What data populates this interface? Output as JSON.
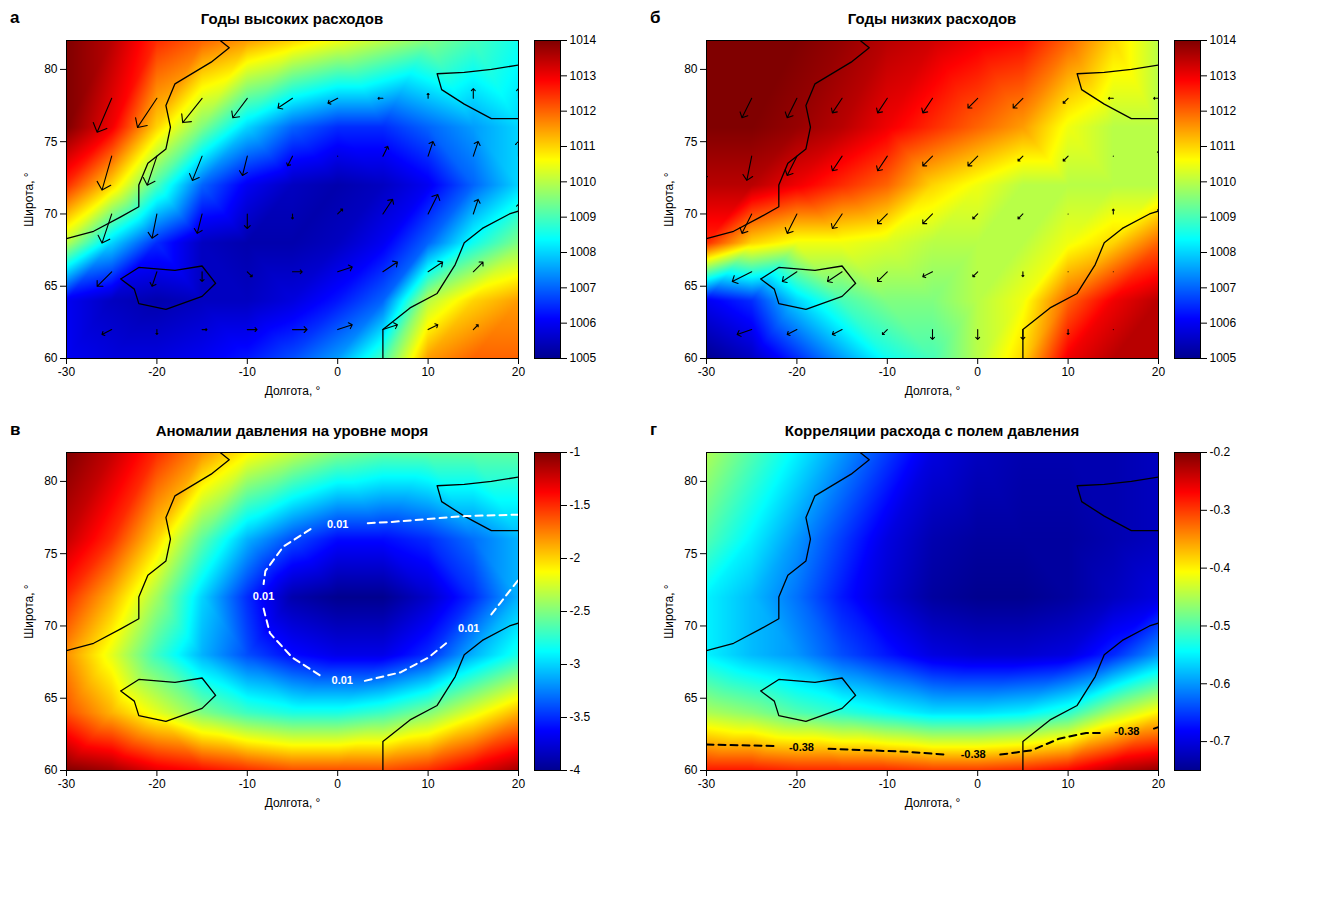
{
  "coastlines": [
    [
      [
        -30,
        68.3
      ],
      [
        -27,
        68.8
      ],
      [
        -24,
        69.8
      ],
      [
        -22,
        70.5
      ],
      [
        -22,
        72
      ],
      [
        -21,
        73.5
      ],
      [
        -19,
        74.5
      ],
      [
        -18.5,
        76
      ],
      [
        -19,
        77.5
      ],
      [
        -18,
        79
      ],
      [
        -14,
        80.5
      ],
      [
        -12,
        81.5
      ],
      [
        -13,
        82
      ]
    ],
    [
      [
        -24,
        65.5
      ],
      [
        -22,
        66.3
      ],
      [
        -18,
        66.1
      ],
      [
        -15,
        66.4
      ],
      [
        -13.5,
        65.2
      ],
      [
        -15,
        64.3
      ],
      [
        -19,
        63.4
      ],
      [
        -22,
        63.8
      ],
      [
        -22.5,
        64.8
      ],
      [
        -24,
        65.5
      ]
    ],
    [
      [
        5,
        60
      ],
      [
        5,
        62
      ],
      [
        8,
        63.5
      ],
      [
        11,
        64.5
      ],
      [
        13,
        66.5
      ],
      [
        14,
        68
      ],
      [
        16,
        69
      ],
      [
        19,
        70
      ],
      [
        20,
        70.2
      ]
    ],
    [
      [
        20,
        76.6
      ],
      [
        17,
        76.6
      ],
      [
        14,
        77.6
      ],
      [
        11.5,
        78.6
      ],
      [
        11,
        79.7
      ],
      [
        14,
        79.8
      ],
      [
        17,
        80
      ],
      [
        20,
        80.3
      ]
    ]
  ],
  "chart_data": [
    {
      "type": "heatmap",
      "letter": "а",
      "title": "Годы высоких расходов",
      "xlabel": "Долгота, °",
      "ylabel": "Широта, °",
      "xlim": [
        -30,
        20
      ],
      "xticks": [
        -30,
        -20,
        -10,
        0,
        10,
        20
      ],
      "ylim": [
        60,
        82
      ],
      "yticks": [
        60,
        65,
        70,
        75,
        80
      ],
      "grid_lon": [
        -30,
        -25,
        -20,
        -15,
        -10,
        -5,
        0,
        5,
        10,
        15,
        20
      ],
      "grid_lat": [
        60,
        64,
        68,
        72,
        76,
        82
      ],
      "values": [
        [
          1006,
          1005.8,
          1005.8,
          1006,
          1006.3,
          1006.8,
          1007.5,
          1009,
          1011.5,
          1012,
          1012
        ],
        [
          1006,
          1005.5,
          1005.3,
          1005.5,
          1005.5,
          1005.8,
          1006.3,
          1007,
          1010,
          1011,
          1011.5
        ],
        [
          1010,
          1008,
          1006.5,
          1005.5,
          1005.3,
          1005.3,
          1005.5,
          1006,
          1007,
          1008.5,
          1009.5
        ],
        [
          1012.5,
          1011,
          1009,
          1007,
          1006,
          1005.5,
          1005.3,
          1005.5,
          1006,
          1007,
          1008
        ],
        [
          1014,
          1013,
          1011,
          1009.5,
          1008,
          1007,
          1006.5,
          1006.5,
          1007,
          1007.5,
          1008
        ],
        [
          1014,
          1013.5,
          1012.5,
          1012,
          1011.5,
          1011,
          1010.5,
          1010,
          1009.5,
          1009,
          1008.5
        ]
      ],
      "colorbar": {
        "lim": [
          1005,
          1014
        ],
        "ticks": [
          1005,
          1006,
          1007,
          1008,
          1009,
          1010,
          1011,
          1012,
          1013,
          1014
        ]
      },
      "wind": {
        "lon": [
          -30,
          -25,
          -20,
          -15,
          -10,
          -5,
          0,
          5,
          10,
          15,
          20
        ],
        "lat": [
          62,
          66,
          70,
          74,
          78
        ],
        "u": [
          [
            -3,
            -2,
            0,
            1,
            2,
            3,
            3,
            3,
            2,
            1,
            1
          ],
          [
            -4,
            -3,
            -1,
            0,
            1,
            2,
            3,
            3,
            3,
            2,
            1
          ],
          [
            -3,
            -2,
            -1,
            -1,
            0,
            0,
            1,
            2,
            2,
            1,
            0
          ],
          [
            -2,
            -2,
            -2,
            -2,
            -1,
            -1,
            0,
            1,
            1,
            1,
            0
          ],
          [
            -2,
            -3,
            -4,
            -4,
            -3,
            -3,
            -2,
            -1,
            0,
            0,
            0
          ]
        ],
        "v": [
          [
            -1,
            -1,
            -1,
            0,
            0,
            0,
            1,
            1,
            1,
            1,
            0
          ],
          [
            -3,
            -3,
            -3,
            -2,
            -1,
            0,
            1,
            2,
            2,
            2,
            1
          ],
          [
            -7,
            -6,
            -5,
            -4,
            -3,
            -1,
            1,
            3,
            4,
            3,
            2
          ],
          [
            -8,
            -7,
            -6,
            -5,
            -4,
            -2,
            0,
            2,
            3,
            3,
            3
          ],
          [
            -7,
            -7,
            -6,
            -5,
            -4,
            -2,
            -1,
            0,
            1,
            2,
            2
          ]
        ]
      }
    },
    {
      "type": "heatmap",
      "letter": "б",
      "title": "Годы низких расходов",
      "xlabel": "Долгота, °",
      "ylabel": "Широта, °",
      "xlim": [
        -30,
        20
      ],
      "xticks": [
        -30,
        -20,
        -10,
        0,
        10,
        20
      ],
      "ylim": [
        60,
        82
      ],
      "yticks": [
        60,
        65,
        70,
        75,
        80
      ],
      "grid_lon": [
        -30,
        -25,
        -20,
        -15,
        -10,
        -5,
        0,
        5,
        10,
        15,
        20
      ],
      "grid_lat": [
        60,
        64,
        68,
        72,
        76,
        82
      ],
      "values": [
        [
          1005,
          1005.5,
          1006.5,
          1007.5,
          1008.5,
          1009,
          1010,
          1011,
          1013,
          1013.5,
          1013.5
        ],
        [
          1006,
          1006.5,
          1008,
          1009,
          1009.5,
          1009.5,
          1010,
          1010.5,
          1012,
          1013,
          1013.5
        ],
        [
          1012.5,
          1011,
          1010.5,
          1010.5,
          1010.3,
          1010,
          1010,
          1010,
          1010.5,
          1011,
          1012
        ],
        [
          1013.5,
          1013.5,
          1013,
          1012.5,
          1012,
          1011,
          1010.5,
          1010,
          1010,
          1010,
          1010
        ],
        [
          1014,
          1014,
          1013.8,
          1013.5,
          1013,
          1012.5,
          1012,
          1011.5,
          1010.5,
          1010,
          1010
        ],
        [
          1014,
          1014,
          1014,
          1013.8,
          1013.5,
          1013.3,
          1013,
          1012.8,
          1012,
          1011,
          1010
        ]
      ],
      "colorbar": {
        "lim": [
          1005,
          1014
        ],
        "ticks": [
          1005,
          1006,
          1007,
          1008,
          1009,
          1010,
          1011,
          1012,
          1013,
          1014
        ]
      },
      "wind": {
        "lon": [
          -30,
          -25,
          -20,
          -15,
          -10,
          -5,
          0,
          5,
          10,
          15,
          20
        ],
        "lat": [
          62,
          66,
          70,
          74,
          78
        ],
        "u": [
          [
            -4,
            -3,
            -2,
            -2,
            -1,
            0,
            0,
            0,
            0,
            0,
            0
          ],
          [
            -5,
            -4,
            -3,
            -3,
            -2,
            -2,
            -1,
            0,
            0,
            0,
            0
          ],
          [
            -2,
            -2,
            -2,
            -2,
            -2,
            -2,
            -1,
            -1,
            0,
            0,
            0
          ],
          [
            -1,
            -1,
            -2,
            -2,
            -2,
            -2,
            -2,
            -1,
            -1,
            0,
            0
          ],
          [
            -1,
            -2,
            -2,
            -2,
            -2,
            -2,
            -2,
            -2,
            -1,
            -1,
            -1
          ]
        ],
        "v": [
          [
            -1,
            -1,
            -1,
            -1,
            -1,
            -2,
            -2,
            -2,
            -1,
            0,
            0
          ],
          [
            -2,
            -2,
            -2,
            -2,
            -2,
            -1,
            -1,
            -1,
            0,
            0,
            0
          ],
          [
            -5,
            -4,
            -4,
            -3,
            -2,
            -2,
            -1,
            -1,
            0,
            1,
            1
          ],
          [
            -5,
            -5,
            -4,
            -3,
            -3,
            -2,
            -2,
            -1,
            -1,
            0,
            1
          ],
          [
            -4,
            -4,
            -4,
            -3,
            -3,
            -3,
            -2,
            -2,
            -1,
            0,
            0
          ]
        ]
      }
    },
    {
      "type": "heatmap",
      "letter": "в",
      "title": "Аномалии давления на уровне моря",
      "xlabel": "Долгота, °",
      "ylabel": "Широта, °",
      "xlim": [
        -30,
        20
      ],
      "xticks": [
        -30,
        -20,
        -10,
        0,
        10,
        20
      ],
      "ylim": [
        60,
        82
      ],
      "yticks": [
        60,
        65,
        70,
        75,
        80
      ],
      "grid_lon": [
        -30,
        -25,
        -20,
        -15,
        -10,
        -5,
        0,
        5,
        10,
        15,
        20
      ],
      "grid_lat": [
        60,
        64,
        68,
        72,
        76,
        82
      ],
      "values": [
        [
          -1,
          -1.1,
          -1.3,
          -1.4,
          -1.5,
          -1.6,
          -1.6,
          -1.6,
          -1.5,
          -1.3,
          -1.1
        ],
        [
          -1.6,
          -1.9,
          -2.2,
          -2.5,
          -2.7,
          -2.8,
          -2.8,
          -2.7,
          -2.5,
          -2.2,
          -1.9
        ],
        [
          -1.8,
          -2.2,
          -2.7,
          -3.1,
          -3.4,
          -3.6,
          -3.7,
          -3.7,
          -3.5,
          -3.1,
          -2.8
        ],
        [
          -1.5,
          -1.9,
          -2.4,
          -3,
          -3.5,
          -3.9,
          -4,
          -4,
          -3.8,
          -3.5,
          -3.1
        ],
        [
          -1.2,
          -1.5,
          -2,
          -2.6,
          -3.1,
          -3.4,
          -3.6,
          -3.6,
          -3.5,
          -3.3,
          -3.1
        ],
        [
          -1,
          -1.2,
          -1.5,
          -1.8,
          -2.1,
          -2.3,
          -2.5,
          -2.6,
          -2.6,
          -2.6,
          -2.6
        ]
      ],
      "colorbar": {
        "lim": [
          -4,
          -1
        ],
        "ticks": [
          -4,
          -3.5,
          -3,
          -2.5,
          -2,
          -1.5,
          -1
        ]
      },
      "contour": {
        "value": 0.01,
        "label": "0.01",
        "color": "#ffffff",
        "line_style": "dashed",
        "segments": [
          [
            [
              20,
              77.7
            ],
            [
              14,
              77.6
            ],
            [
              6,
              77.2
            ],
            [
              3,
              77.1
            ]
          ],
          [
            [
              -3,
              76.7
            ],
            [
              -6,
              75.5
            ],
            [
              -8,
              73.8
            ],
            [
              -8.2,
              72.9
            ]
          ],
          [
            [
              -8.2,
              71.2
            ],
            [
              -7.5,
              69.5
            ],
            [
              -5,
              67.8
            ],
            [
              -2,
              66.6
            ]
          ],
          [
            [
              3,
              66.2
            ],
            [
              7,
              66.8
            ],
            [
              10,
              67.8
            ],
            [
              12,
              68.8
            ]
          ],
          [
            [
              17,
              70.8
            ],
            [
              18,
              71.6
            ],
            [
              20,
              73.2
            ]
          ]
        ],
        "label_positions": [
          [
            0,
            77.0
          ],
          [
            -8.2,
            72.05
          ],
          [
            0.5,
            66.2
          ],
          [
            14.5,
            69.8
          ]
        ]
      }
    },
    {
      "type": "heatmap",
      "letter": "г",
      "title": "Корреляции расхода с полем давления",
      "xlabel": "Долгота, °",
      "ylabel": "Широта, °",
      "xlim": [
        -30,
        20
      ],
      "xticks": [
        -30,
        -20,
        -10,
        0,
        10,
        20
      ],
      "ylim": [
        60,
        82
      ],
      "yticks": [
        60,
        65,
        70,
        75,
        80
      ],
      "grid_lon": [
        -30,
        -25,
        -20,
        -15,
        -10,
        -5,
        0,
        5,
        10,
        15,
        20
      ],
      "grid_lat": [
        60,
        64,
        68,
        72,
        76,
        82
      ],
      "values": [
        [
          -0.28,
          -0.28,
          -0.29,
          -0.29,
          -0.29,
          -0.3,
          -0.3,
          -0.29,
          -0.27,
          -0.23,
          -0.21
        ],
        [
          -0.45,
          -0.47,
          -0.5,
          -0.52,
          -0.54,
          -0.56,
          -0.56,
          -0.55,
          -0.52,
          -0.45,
          -0.4
        ],
        [
          -0.55,
          -0.58,
          -0.6,
          -0.64,
          -0.67,
          -0.7,
          -0.71,
          -0.71,
          -0.7,
          -0.66,
          -0.6
        ],
        [
          -0.55,
          -0.58,
          -0.62,
          -0.67,
          -0.71,
          -0.74,
          -0.75,
          -0.75,
          -0.74,
          -0.72,
          -0.7
        ],
        [
          -0.5,
          -0.55,
          -0.6,
          -0.65,
          -0.7,
          -0.73,
          -0.74,
          -0.74,
          -0.74,
          -0.73,
          -0.72
        ],
        [
          -0.45,
          -0.5,
          -0.55,
          -0.6,
          -0.65,
          -0.7,
          -0.72,
          -0.73,
          -0.73,
          -0.73,
          -0.72
        ]
      ],
      "colorbar": {
        "lim": [
          -0.75,
          -0.2
        ],
        "ticks": [
          -0.7,
          -0.6,
          -0.5,
          -0.4,
          -0.3,
          -0.2
        ]
      },
      "contour": {
        "value": -0.38,
        "label": "-0.38",
        "color": "#000000",
        "line_style": "dashed",
        "segments": [
          [
            [
              -30,
              61.8
            ],
            [
              -22.5,
              61.7
            ]
          ],
          [
            [
              -16.5,
              61.5
            ],
            [
              -8,
              61.3
            ],
            [
              -3.5,
              61.1
            ]
          ],
          [
            [
              2.5,
              61.1
            ],
            [
              6,
              61.4
            ],
            [
              9,
              62.2
            ],
            [
              12,
              62.6
            ],
            [
              13.5,
              62.6
            ]
          ],
          [
            [
              19.5,
              62.9
            ],
            [
              20,
              63.0
            ]
          ]
        ],
        "label_positions": [
          [
            -19.5,
            61.6
          ],
          [
            -0.5,
            61.1
          ],
          [
            16.5,
            62.7
          ]
        ]
      }
    }
  ]
}
